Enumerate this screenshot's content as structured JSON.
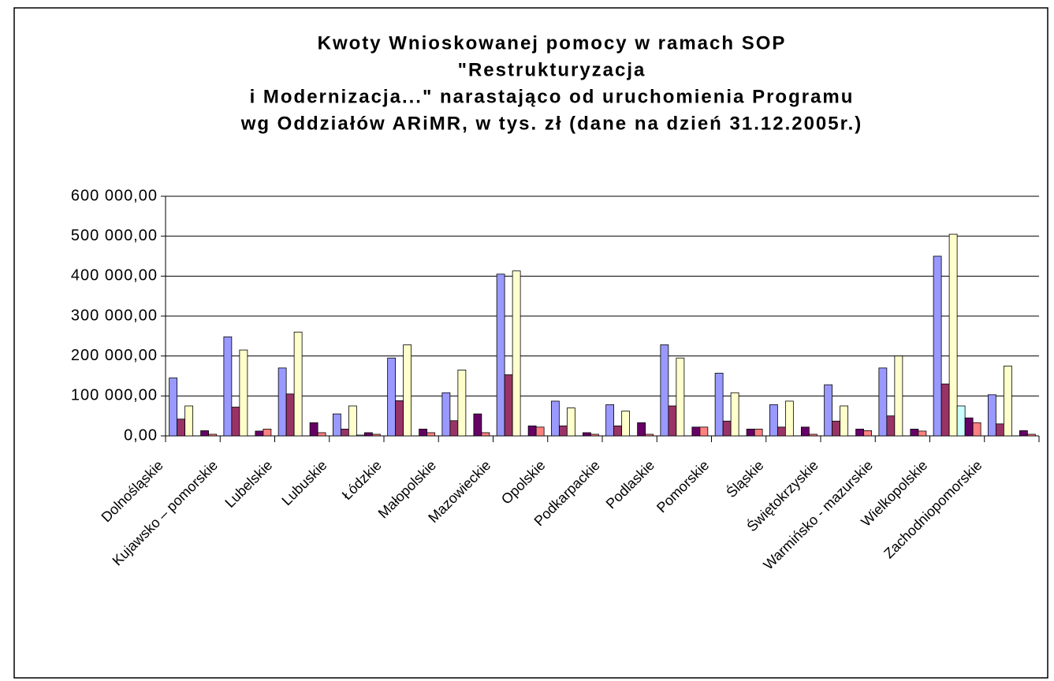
{
  "chart_data": {
    "type": "bar",
    "title": [
      "Kwoty Wnioskowanej pomocy w ramach SOP",
      "\"Restrukturyzacja",
      "i Modernizacja...\" narastająco od uruchomienia Programu",
      "wg Oddziałów ARiMR, w tys. zł (dane na dzień 31.12.2005r.)"
    ],
    "categories": [
      "Dolnośląskie",
      "Kujawsko – pomorskie",
      "Lubelskie",
      "Lubuskie",
      "Łódzkie",
      "Małopolskie",
      "Mazowieckie",
      "Opolskie",
      "Podkarpackie",
      "Podlaskie",
      "Pomorskie",
      "Śląskie",
      "Świętokrzyskie",
      "Warmińsko - mazurskie",
      "Wielkopolskie",
      "Zachodniopomorskie"
    ],
    "series": [
      {
        "color": "#9999ff",
        "values": [
          145000,
          248000,
          170000,
          55000,
          195000,
          108000,
          405000,
          87000,
          78000,
          228000,
          157000,
          78000,
          128000,
          170000,
          450000,
          103000
        ]
      },
      {
        "color": "#993366",
        "values": [
          42000,
          72000,
          105000,
          17000,
          88000,
          38000,
          153000,
          25000,
          25000,
          75000,
          37000,
          22000,
          37000,
          50000,
          130000,
          30000
        ]
      },
      {
        "color": "#ffffcc",
        "values": [
          75000,
          215000,
          260000,
          75000,
          228000,
          165000,
          413000,
          70000,
          62000,
          195000,
          108000,
          87000,
          75000,
          200000,
          505000,
          175000
        ]
      },
      {
        "color": "#ccffff",
        "values": [
          0,
          0,
          0,
          2000,
          0,
          0,
          0,
          0,
          0,
          0,
          0,
          0,
          0,
          0,
          75000,
          0
        ]
      },
      {
        "color": "#660066",
        "values": [
          13000,
          12000,
          33000,
          8000,
          17000,
          55000,
          25000,
          8000,
          33000,
          22000,
          17000,
          22000,
          17000,
          17000,
          45000,
          13000
        ]
      },
      {
        "color": "#ff8080",
        "values": [
          4000,
          17000,
          8000,
          4000,
          8000,
          8000,
          22000,
          4000,
          4000,
          22000,
          17000,
          4000,
          13000,
          12000,
          33000,
          4000
        ]
      }
    ],
    "ylim": [
      0,
      600000
    ],
    "yticks": [
      {
        "value": 0,
        "label": "0,00"
      },
      {
        "value": 100000,
        "label": "100 000,00"
      },
      {
        "value": 200000,
        "label": "200 000,00"
      },
      {
        "value": 300000,
        "label": "300 000,00"
      },
      {
        "value": 400000,
        "label": "400 000,00"
      },
      {
        "value": 500000,
        "label": "500 000,00"
      },
      {
        "value": 600000,
        "label": "600 000,00"
      }
    ],
    "grid": true
  }
}
